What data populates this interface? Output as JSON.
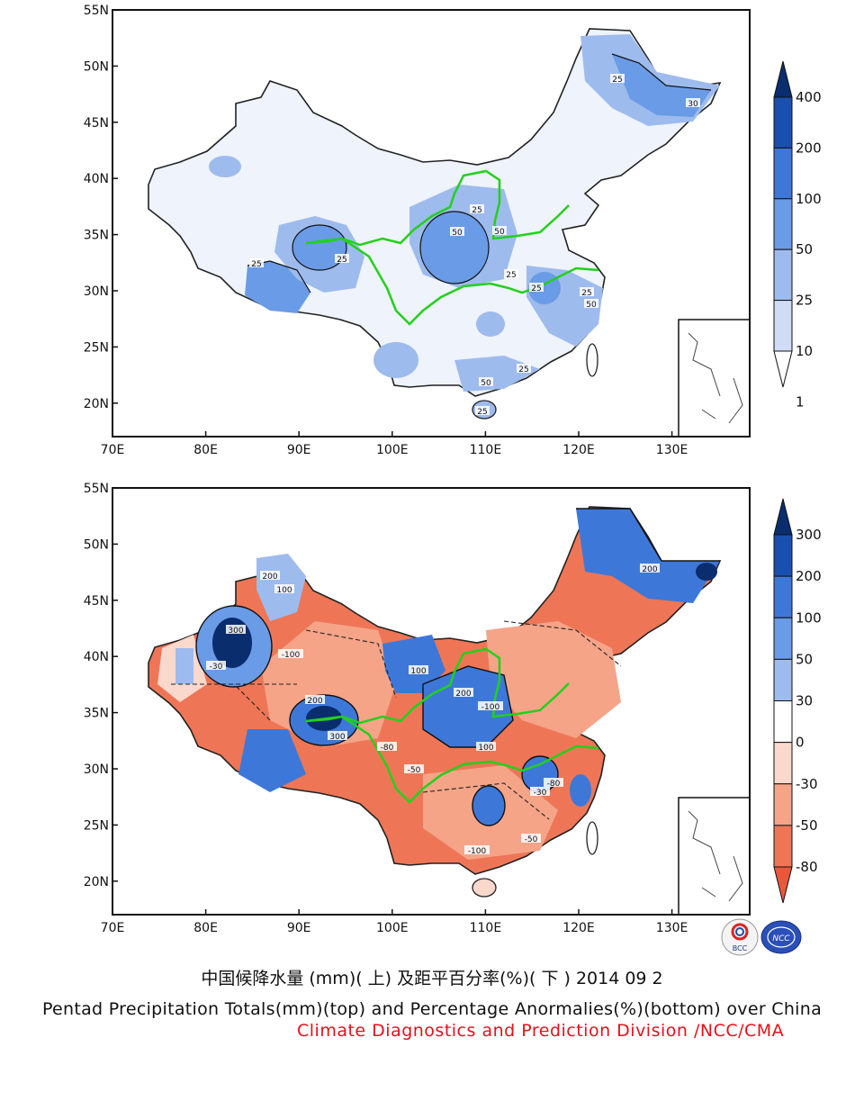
{
  "top_map": {
    "lat_labels": [
      "55N",
      "50N",
      "45N",
      "40N",
      "35N",
      "30N",
      "25N",
      "20N"
    ],
    "lon_labels": [
      "70E",
      "80E",
      "90E",
      "100E",
      "110E",
      "120E",
      "130E"
    ],
    "colorbar_labels": [
      "400",
      "200",
      "100",
      "50",
      "25",
      "10",
      "1"
    ],
    "colorbar_colors": [
      "#0a2d6e",
      "#1a4fb0",
      "#3d78d8",
      "#6a9be6",
      "#9ebbee",
      "#cfdcf6",
      "#ffffff"
    ],
    "contour_labels": [
      "25",
      "25",
      "25",
      "50",
      "50",
      "25",
      "25",
      "25",
      "50",
      "25",
      "50",
      "25",
      "25",
      "30"
    ]
  },
  "bottom_map": {
    "lat_labels": [
      "55N",
      "50N",
      "45N",
      "40N",
      "35N",
      "30N",
      "25N",
      "20N"
    ],
    "lon_labels": [
      "70E",
      "80E",
      "90E",
      "100E",
      "110E",
      "120E",
      "130E"
    ],
    "colorbar_labels": [
      "300",
      "200",
      "100",
      "50",
      "30",
      "0",
      "-30",
      "-50",
      "-80"
    ],
    "colorbar_colors": [
      "#0a2d6e",
      "#1a4fb0",
      "#3d78d8",
      "#6a9be6",
      "#9ebbee",
      "#ffffff",
      "#fbd8cc",
      "#f5a488",
      "#ee7656",
      "#e9583a"
    ],
    "contour_labels": [
      "300",
      "200",
      "100",
      "-100",
      "-30",
      "200",
      "100",
      "200",
      "-100",
      "-50",
      "-80",
      "100",
      "300",
      "-30",
      "-50",
      "-100",
      "-80",
      "200"
    ]
  },
  "logos": {
    "left": "BCC",
    "right": "NCC"
  },
  "captions": {
    "chinese": "中国候降水量 (mm)( 上) 及距平百分率(%)( 下 ) 2014 09 2",
    "english": "Pentad Precipitation Totals(mm)(top) and Percentage Anormalies(%)(bottom) over China",
    "division": "Climate Diagnostics and Prediction Division /NCC/CMA"
  }
}
